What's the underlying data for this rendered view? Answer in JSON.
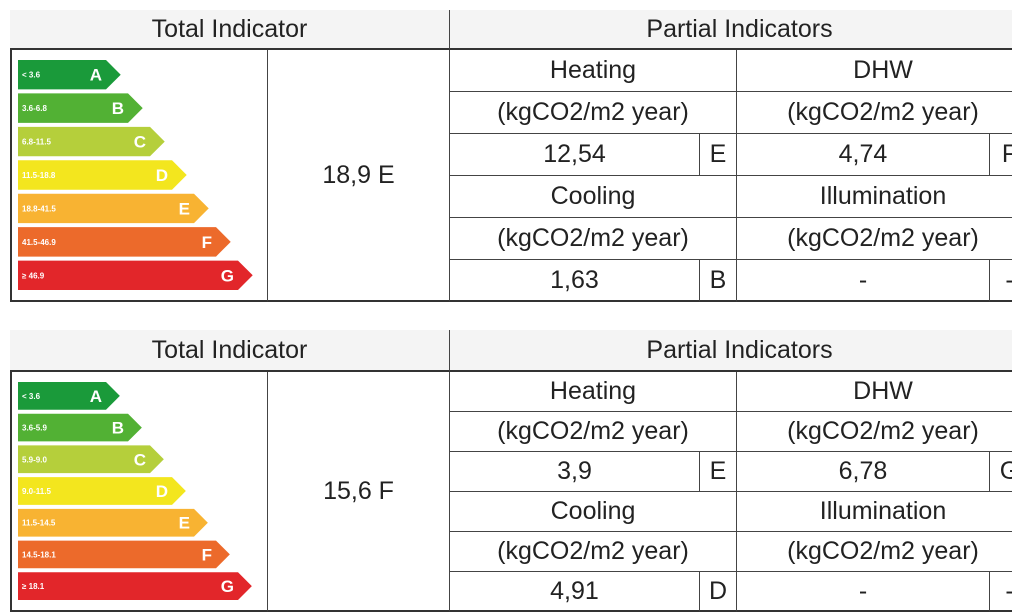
{
  "tables": [
    {
      "header": {
        "total": "Total Indicator",
        "partial": "Partial Indicators"
      },
      "scale": [
        {
          "range": "< 3.6",
          "grade": "A"
        },
        {
          "range": "3.6-6.8",
          "grade": "B"
        },
        {
          "range": "6.8-11.5",
          "grade": "C"
        },
        {
          "range": "11.5-18.8",
          "grade": "D"
        },
        {
          "range": "18.8-41.5",
          "grade": "E"
        },
        {
          "range": "41.5-46.9",
          "grade": "F"
        },
        {
          "range": "≥ 46.9",
          "grade": "G"
        }
      ],
      "total_value": "18,9 E",
      "partials": [
        {
          "name": "Heating",
          "unit": "(kgCO2/m2 year)",
          "value": "12,54",
          "grade": "E"
        },
        {
          "name": "DHW",
          "unit": "(kgCO2/m2 year)",
          "value": "4,74",
          "grade": "F"
        },
        {
          "name": "Cooling",
          "unit": "(kgCO2/m2 year)",
          "value": "1,63",
          "grade": "B"
        },
        {
          "name": "Illumination",
          "unit": "(kgCO2/m2 year)",
          "value": "-",
          "grade": "-"
        }
      ]
    },
    {
      "header": {
        "total": "Total Indicator",
        "partial": "Partial Indicators"
      },
      "scale": [
        {
          "range": "< 3.6",
          "grade": "A"
        },
        {
          "range": "3.6-5.9",
          "grade": "B"
        },
        {
          "range": "5.9-9.0",
          "grade": "C"
        },
        {
          "range": "9.0-11.5",
          "grade": "D"
        },
        {
          "range": "11.5-14.5",
          "grade": "E"
        },
        {
          "range": "14.5-18.1",
          "grade": "F"
        },
        {
          "range": "≥ 18.1",
          "grade": "G"
        }
      ],
      "total_value": "15,6 F",
      "partials": [
        {
          "name": "Heating",
          "unit": "(kgCO2/m2 year)",
          "value": "3,9",
          "grade": "E"
        },
        {
          "name": "DHW",
          "unit": "(kgCO2/m2 year)",
          "value": "6,78",
          "grade": "G"
        },
        {
          "name": "Cooling",
          "unit": "(kgCO2/m2 year)",
          "value": "4,91",
          "grade": "D"
        },
        {
          "name": "Illumination",
          "unit": "(kgCO2/m2 year)",
          "value": "-",
          "grade": "-"
        }
      ]
    }
  ]
}
